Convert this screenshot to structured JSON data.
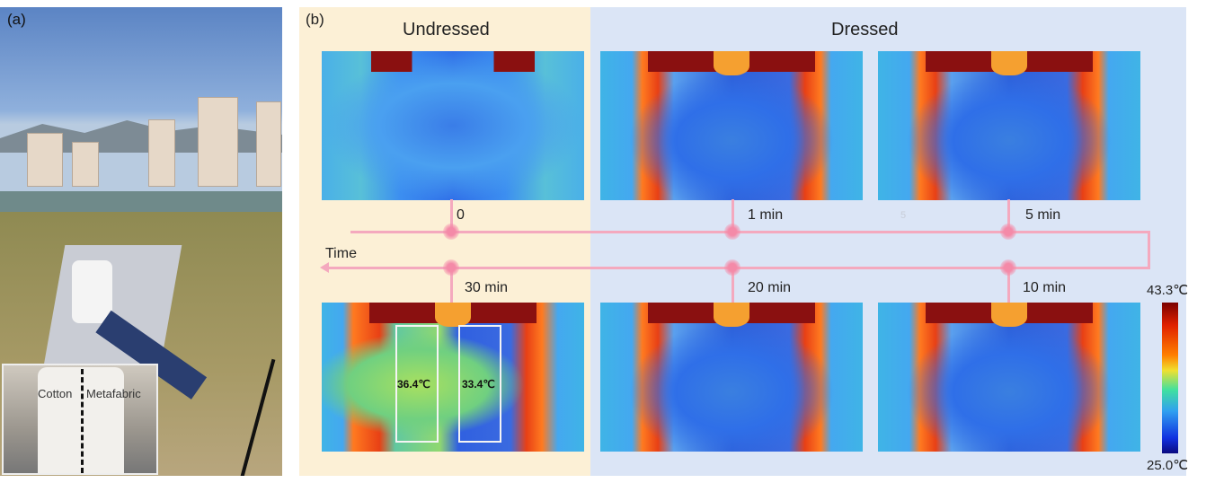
{
  "panel_a": {
    "label": "(a)",
    "inset": {
      "left_label": "Cotton",
      "right_label": "Metafabric"
    }
  },
  "panel_b": {
    "label": "(b)",
    "undressed_title": "Undressed",
    "dressed_title": "Dressed",
    "time_label": "Time",
    "timepoints_top": [
      "0",
      "1 min",
      "5 min"
    ],
    "faint_mark": "5",
    "timepoints_bottom": [
      "30 min",
      "20 min",
      "10 min"
    ],
    "temps": {
      "cotton": "36.4℃",
      "metafabric": "33.4℃"
    },
    "colorbar": {
      "max": "43.3℃",
      "min": "25.0℃"
    }
  },
  "colors": {
    "undressed_bg": "#fcf0d6",
    "dressed_bg": "#dbe5f6",
    "timeline": "#f4a9be"
  }
}
